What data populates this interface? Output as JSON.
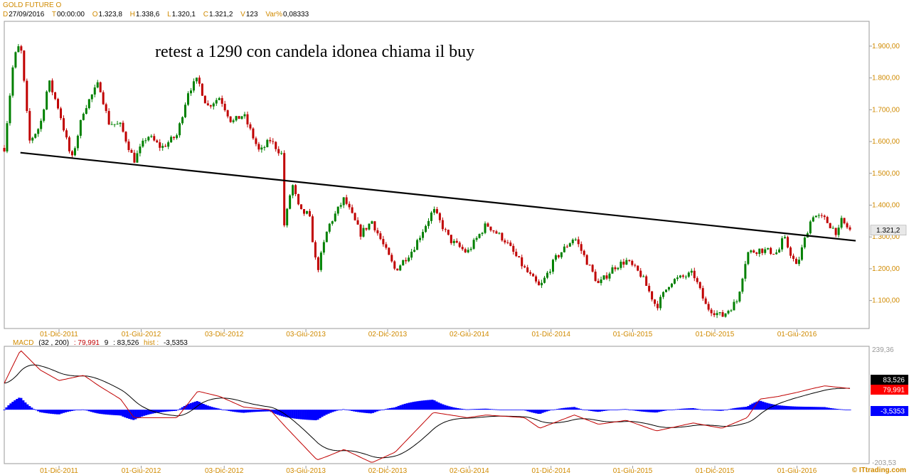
{
  "header": {
    "title": "GOLD FUTURE O",
    "ohlc": [
      {
        "key": "D",
        "value": "27/09/2016"
      },
      {
        "key": "T",
        "value": "00:00:00"
      },
      {
        "key": "O",
        "value": "1.323,8"
      },
      {
        "key": "H",
        "value": "1.338,6"
      },
      {
        "key": "L",
        "value": "1.320,1"
      },
      {
        "key": "C",
        "value": "1.321,2"
      },
      {
        "key": "V",
        "value": "123"
      },
      {
        "key": "Var%",
        "value": "0,08333"
      }
    ]
  },
  "annotation": "retest a 1290 con candela idonea chiama il buy",
  "watermark": "© ITtrading.com",
  "macd_header": {
    "name": "MACD",
    "params": "(32 , 200)",
    "value": ": 79,991",
    "signal_period": "9",
    "signal_value": ": 83,526",
    "hist_label": "hist :",
    "hist_value": "-3,5353"
  },
  "chart_data": [
    {
      "type": "candlestick",
      "title": "GOLD FUTURE O",
      "x_labels": [
        "01-Dic-2011",
        "01-Giu-2012",
        "03-Dic-2012",
        "03-Giu-2013",
        "02-Dic-2013",
        "02-Giu-2014",
        "01-Dic-2014",
        "01-Giu-2015",
        "01-Dic-2015",
        "01-Giu-2016"
      ],
      "y_ticks": [
        {
          "value": 1900,
          "label": "1.900,00"
        },
        {
          "value": 1800,
          "label": "1.800,00"
        },
        {
          "value": 1700,
          "label": "1.700,00"
        },
        {
          "value": 1600,
          "label": "1.600,00"
        },
        {
          "value": 1500,
          "label": "1.500,00"
        },
        {
          "value": 1400,
          "label": "1.400,00"
        },
        {
          "value": 1300,
          "label": "1.300,00"
        },
        {
          "value": 1200,
          "label": "1.200,00"
        },
        {
          "value": 1100,
          "label": "1.100,00"
        }
      ],
      "ylim": [
        1012,
        1978
      ],
      "last_price": 1321.2,
      "last_price_label": "1.321,2",
      "trendline": {
        "start": {
          "x": "2011-09",
          "y": 1565
        },
        "end": {
          "x": "2016-09",
          "y": 1288
        }
      },
      "up_color": "#008000",
      "down_color": "#c00000",
      "price_path": [
        {
          "date": "2011-08-01",
          "close": 1580
        },
        {
          "date": "2011-08-22",
          "close": 1860
        },
        {
          "date": "2011-09-06",
          "close": 1910
        },
        {
          "date": "2011-09-26",
          "close": 1600
        },
        {
          "date": "2011-10-20",
          "close": 1650
        },
        {
          "date": "2011-11-08",
          "close": 1790
        },
        {
          "date": "2011-12-01",
          "close": 1700
        },
        {
          "date": "2011-12-29",
          "close": 1540
        },
        {
          "date": "2012-01-25",
          "close": 1700
        },
        {
          "date": "2012-02-28",
          "close": 1785
        },
        {
          "date": "2012-03-20",
          "close": 1660
        },
        {
          "date": "2012-04-16",
          "close": 1650
        },
        {
          "date": "2012-05-16",
          "close": 1540
        },
        {
          "date": "2012-06-15",
          "close": 1620
        },
        {
          "date": "2012-07-16",
          "close": 1580
        },
        {
          "date": "2012-08-20",
          "close": 1620
        },
        {
          "date": "2012-09-14",
          "close": 1760
        },
        {
          "date": "2012-10-05",
          "close": 1795
        },
        {
          "date": "2012-10-26",
          "close": 1710
        },
        {
          "date": "2012-11-23",
          "close": 1740
        },
        {
          "date": "2012-12-20",
          "close": 1660
        },
        {
          "date": "2013-01-15",
          "close": 1685
        },
        {
          "date": "2013-02-20",
          "close": 1565
        },
        {
          "date": "2013-03-15",
          "close": 1605
        },
        {
          "date": "2013-04-10",
          "close": 1560
        },
        {
          "date": "2013-04-16",
          "close": 1330
        },
        {
          "date": "2013-05-03",
          "close": 1470
        },
        {
          "date": "2013-05-20",
          "close": 1380
        },
        {
          "date": "2013-06-10",
          "close": 1370
        },
        {
          "date": "2013-06-28",
          "close": 1190
        },
        {
          "date": "2013-07-22",
          "close": 1330
        },
        {
          "date": "2013-08-27",
          "close": 1420
        },
        {
          "date": "2013-10-03",
          "close": 1310
        },
        {
          "date": "2013-10-28",
          "close": 1350
        },
        {
          "date": "2013-12-19",
          "close": 1195
        },
        {
          "date": "2014-01-27",
          "close": 1260
        },
        {
          "date": "2014-03-14",
          "close": 1385
        },
        {
          "date": "2014-04-20",
          "close": 1290
        },
        {
          "date": "2014-05-28",
          "close": 1250
        },
        {
          "date": "2014-07-10",
          "close": 1340
        },
        {
          "date": "2014-08-20",
          "close": 1290
        },
        {
          "date": "2014-10-03",
          "close": 1200
        },
        {
          "date": "2014-11-06",
          "close": 1140
        },
        {
          "date": "2014-12-10",
          "close": 1230
        },
        {
          "date": "2015-01-22",
          "close": 1300
        },
        {
          "date": "2015-03-17",
          "close": 1150
        },
        {
          "date": "2015-04-20",
          "close": 1205
        },
        {
          "date": "2015-05-18",
          "close": 1225
        },
        {
          "date": "2015-06-20",
          "close": 1180
        },
        {
          "date": "2015-07-24",
          "close": 1080
        },
        {
          "date": "2015-08-24",
          "close": 1160
        },
        {
          "date": "2015-10-14",
          "close": 1185
        },
        {
          "date": "2015-11-12",
          "close": 1080
        },
        {
          "date": "2015-12-17",
          "close": 1050
        },
        {
          "date": "2016-01-20",
          "close": 1100
        },
        {
          "date": "2016-02-11",
          "close": 1250
        },
        {
          "date": "2016-03-10",
          "close": 1260
        },
        {
          "date": "2016-04-20",
          "close": 1250
        },
        {
          "date": "2016-05-02",
          "close": 1300
        },
        {
          "date": "2016-05-31",
          "close": 1205
        },
        {
          "date": "2016-06-24",
          "close": 1320
        },
        {
          "date": "2016-07-06",
          "close": 1370
        },
        {
          "date": "2016-08-02",
          "close": 1355
        },
        {
          "date": "2016-08-31",
          "close": 1310
        },
        {
          "date": "2016-09-08",
          "close": 1350
        },
        {
          "date": "2016-09-27",
          "close": 1321
        }
      ]
    },
    {
      "type": "line",
      "title": "MACD",
      "x_labels": [
        "01-Dic-2011",
        "01-Giu-2012",
        "03-Dic-2012",
        "03-Giu-2013",
        "02-Dic-2013",
        "02-Giu-2014",
        "01-Dic-2014",
        "01-Giu-2015",
        "01-Dic-2015",
        "01-Giu-2016"
      ],
      "y_ticks": [
        {
          "value": 239.36,
          "label": "239,36"
        },
        {
          "value": -203.53,
          "label": "-203,53"
        }
      ],
      "ylim": [
        -203.53,
        239.36
      ],
      "series": [
        {
          "name": "MACD",
          "color": "#c00000",
          "last_value": 79.991,
          "last_label": "79,991"
        },
        {
          "name": "Signal",
          "color": "#000000",
          "last_value": 83.526,
          "last_label": "83,526"
        },
        {
          "name": "hist",
          "color": "#0000ff",
          "last_value": -3.5353,
          "last_label": "-3,5353"
        }
      ],
      "macd_path": [
        {
          "date": "2011-08-01",
          "value": 100
        },
        {
          "date": "2011-09-06",
          "value": 225
        },
        {
          "date": "2011-10-20",
          "value": 150
        },
        {
          "date": "2011-12-01",
          "value": 110
        },
        {
          "date": "2012-01-25",
          "value": 130
        },
        {
          "date": "2012-02-28",
          "value": 90
        },
        {
          "date": "2012-04-16",
          "value": 40
        },
        {
          "date": "2012-05-16",
          "value": -30
        },
        {
          "date": "2012-08-20",
          "value": -30
        },
        {
          "date": "2012-10-05",
          "value": 70
        },
        {
          "date": "2012-11-23",
          "value": 50
        },
        {
          "date": "2013-01-15",
          "value": 10
        },
        {
          "date": "2013-03-15",
          "value": 0
        },
        {
          "date": "2013-04-16",
          "value": -60
        },
        {
          "date": "2013-06-28",
          "value": -190
        },
        {
          "date": "2013-07-22",
          "value": -175
        },
        {
          "date": "2013-08-27",
          "value": -150
        },
        {
          "date": "2013-10-28",
          "value": -200
        },
        {
          "date": "2013-12-19",
          "value": -160
        },
        {
          "date": "2014-03-14",
          "value": -10
        },
        {
          "date": "2014-05-28",
          "value": -30
        },
        {
          "date": "2014-07-10",
          "value": -20
        },
        {
          "date": "2014-10-03",
          "value": -30
        },
        {
          "date": "2014-11-06",
          "value": -70
        },
        {
          "date": "2015-01-22",
          "value": -20
        },
        {
          "date": "2015-03-17",
          "value": -55
        },
        {
          "date": "2015-05-18",
          "value": -40
        },
        {
          "date": "2015-07-24",
          "value": -80
        },
        {
          "date": "2015-10-14",
          "value": -50
        },
        {
          "date": "2015-12-17",
          "value": -70
        },
        {
          "date": "2016-02-11",
          "value": -30
        },
        {
          "date": "2016-03-10",
          "value": 40
        },
        {
          "date": "2016-04-20",
          "value": 50
        },
        {
          "date": "2016-05-31",
          "value": 65
        },
        {
          "date": "2016-07-06",
          "value": 80
        },
        {
          "date": "2016-08-02",
          "value": 90
        },
        {
          "date": "2016-09-27",
          "value": 80
        }
      ]
    }
  ]
}
